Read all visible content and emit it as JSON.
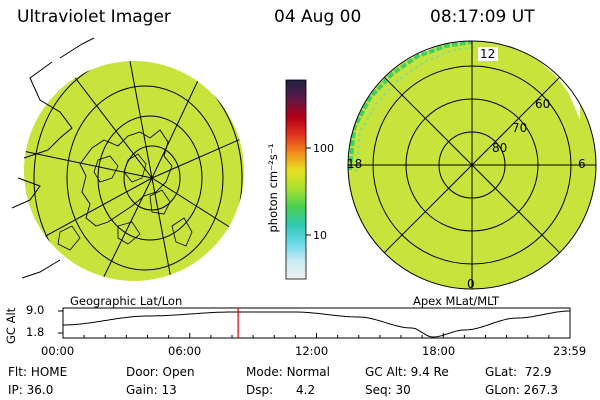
{
  "header": {
    "instrument": "Ultraviolet Imager",
    "date": "04 Aug 00",
    "time": "08:17:09 UT"
  },
  "panels": {
    "left_label": "Geographic Lat/Lon",
    "right_label": "Apex MLat/MLT"
  },
  "colorbar": {
    "unit_label": "photon cm⁻²s⁻¹",
    "ticks": [
      "100",
      "10"
    ],
    "colors": [
      "#202040",
      "#5a1a4a",
      "#b00018",
      "#e03020",
      "#f08a1c",
      "#e8e020",
      "#a8e030",
      "#48d050",
      "#30c8b0",
      "#68d8e8",
      "#c8ecf4",
      "#f0f0f0"
    ]
  },
  "polar_map": {
    "mlt_labels": {
      "top": "12",
      "left": "18",
      "right": "6",
      "bottom": "0"
    },
    "lat_labels": [
      "60",
      "70",
      "80"
    ]
  },
  "alt_plot": {
    "ylabel": "GC Alt",
    "y_ticks": [
      "9.0",
      "1.8"
    ],
    "x_ticks": [
      "00:00",
      "06:00",
      "12:00",
      "18:00",
      "23:59"
    ],
    "current_hour": 8.29
  },
  "status": {
    "row1": [
      {
        "key": "Flt:",
        "value": "HOME"
      },
      {
        "key": "Door:",
        "value": "Open"
      },
      {
        "key": "Mode:",
        "value": "Normal"
      },
      {
        "key": "GC Alt:",
        "value": "9.4 Re"
      },
      {
        "key": "GLat:",
        "value": "72.9"
      }
    ],
    "row2": [
      {
        "key": "IP:",
        "value": "36.0"
      },
      {
        "key": "Gain:",
        "value": "13"
      },
      {
        "key": "Dsp:",
        "value": "4.2"
      },
      {
        "key": "Seq:",
        "value": "30"
      },
      {
        "key": "GLon:",
        "value": "267.3"
      }
    ]
  }
}
